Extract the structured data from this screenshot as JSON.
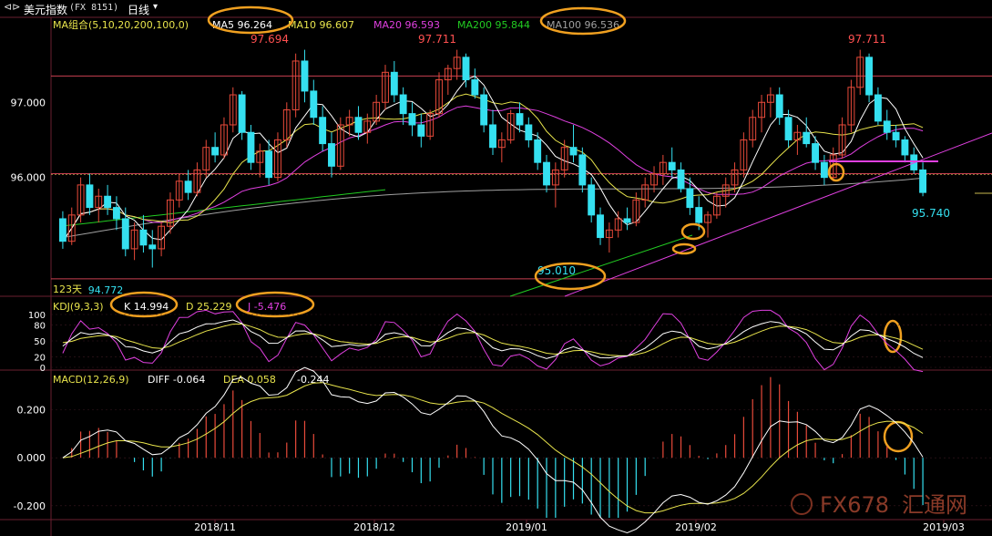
{
  "header": {
    "nav_icon": "back-forward-icon",
    "title": "美元指数",
    "code": "(FX 8151)",
    "period": "日线",
    "period_icon": "chevron-down-icon"
  },
  "main_panel": {
    "indicator_label": "MA组合(5,10,20,200,100,0)",
    "ma_legend": [
      {
        "label": "MA5 96.264",
        "color": "#ffffff"
      },
      {
        "label": "MA10 96.607",
        "color": "#e8e44c"
      },
      {
        "label": "MA20 96.593",
        "color": "#e040e0"
      },
      {
        "label": "MA200 95.844",
        "color": "#22cc22"
      },
      {
        "label": "MA100 96.536",
        "color": "#a0a0a0"
      }
    ],
    "y_ticks": [
      "97.000",
      "96.000"
    ],
    "annotations": {
      "high1": "97.694",
      "high2": "97.711",
      "high3": "97.711",
      "low1": "95.010",
      "low_left": "94.772",
      "last_low": "95.740",
      "days_label": "123天"
    }
  },
  "kdj_panel": {
    "label": "KDJ(9,3,3)",
    "k_label": "K 14.994",
    "d_label": "D 25.229",
    "j_label": "J -5.476",
    "y_ticks": [
      "100",
      "80",
      "50",
      "20",
      "0"
    ]
  },
  "macd_panel": {
    "label": "MACD(12,26,9)",
    "diff_label": "DIFF -0.064",
    "dea_label": "DEA 0.058",
    "macd_value": "-0.244",
    "y_ticks": [
      "0.200",
      "0.000",
      "-0.200"
    ]
  },
  "x_axis": {
    "labels": [
      "2018/11",
      "2018/12",
      "2019/01",
      "2019/02",
      "2019/03"
    ]
  },
  "watermark": {
    "text": "FX678",
    "cn_text": "汇通网"
  },
  "colors": {
    "up": "#e84a3a",
    "down": "#35e0f0",
    "ma5": "#ffffff",
    "ma10": "#e8e44c",
    "ma20": "#e040e0",
    "ma200": "#22cc22",
    "ma100": "#a0a0a0",
    "highlight": "#f0a020",
    "grid_red": "#a03040"
  },
  "chart_data": {
    "type": "candlestick",
    "title": "美元指数 (FX 8151) 日线",
    "ylim": [
      94.6,
      97.95
    ],
    "candles_ohlc": [
      [
        95.45,
        95.55,
        95.05,
        95.15
      ],
      [
        95.15,
        95.6,
        95.1,
        95.5
      ],
      [
        95.5,
        96.0,
        95.4,
        95.9
      ],
      [
        95.9,
        96.05,
        95.5,
        95.6
      ],
      [
        95.6,
        95.85,
        95.4,
        95.75
      ],
      [
        95.75,
        95.9,
        95.5,
        95.6
      ],
      [
        95.6,
        95.75,
        95.3,
        95.45
      ],
      [
        95.45,
        95.6,
        94.95,
        95.05
      ],
      [
        95.05,
        95.4,
        94.9,
        95.3
      ],
      [
        95.3,
        95.5,
        95.0,
        95.1
      ],
      [
        95.1,
        95.3,
        94.8,
        95.05
      ],
      [
        95.05,
        95.4,
        94.95,
        95.35
      ],
      [
        95.35,
        95.8,
        95.25,
        95.7
      ],
      [
        95.7,
        96.05,
        95.6,
        95.95
      ],
      [
        95.95,
        96.1,
        95.7,
        95.8
      ],
      [
        95.8,
        96.2,
        95.75,
        96.1
      ],
      [
        96.1,
        96.5,
        96.0,
        96.4
      ],
      [
        96.4,
        96.6,
        96.2,
        96.3
      ],
      [
        96.3,
        96.8,
        96.25,
        96.7
      ],
      [
        96.7,
        97.2,
        96.6,
        97.1
      ],
      [
        97.1,
        97.15,
        96.5,
        96.6
      ],
      [
        96.6,
        96.7,
        96.1,
        96.2
      ],
      [
        96.2,
        96.45,
        96.0,
        96.35
      ],
      [
        96.35,
        96.5,
        95.9,
        96.0
      ],
      [
        96.0,
        96.6,
        95.95,
        96.5
      ],
      [
        96.5,
        97.0,
        96.4,
        96.9
      ],
      [
        96.9,
        97.65,
        96.8,
        97.55
      ],
      [
        97.55,
        97.7,
        97.0,
        97.15
      ],
      [
        97.15,
        97.3,
        96.7,
        96.8
      ],
      [
        96.8,
        96.95,
        96.35,
        96.45
      ],
      [
        96.45,
        96.6,
        96.0,
        96.15
      ],
      [
        96.15,
        96.8,
        96.1,
        96.7
      ],
      [
        96.7,
        96.9,
        96.55,
        96.8
      ],
      [
        96.8,
        96.95,
        96.5,
        96.6
      ],
      [
        96.6,
        96.85,
        96.45,
        96.75
      ],
      [
        96.75,
        97.1,
        96.7,
        97.0
      ],
      [
        97.0,
        97.5,
        96.9,
        97.4
      ],
      [
        97.4,
        97.55,
        97.0,
        97.1
      ],
      [
        97.1,
        97.2,
        96.7,
        96.85
      ],
      [
        96.85,
        97.0,
        96.55,
        96.7
      ],
      [
        96.7,
        96.85,
        96.4,
        96.55
      ],
      [
        96.55,
        96.9,
        96.5,
        96.85
      ],
      [
        96.85,
        97.4,
        96.8,
        97.3
      ],
      [
        97.3,
        97.5,
        97.1,
        97.45
      ],
      [
        97.45,
        97.7,
        97.3,
        97.6
      ],
      [
        97.6,
        97.65,
        97.2,
        97.3
      ],
      [
        97.3,
        97.45,
        97.05,
        97.1
      ],
      [
        97.1,
        97.2,
        96.6,
        96.7
      ],
      [
        96.7,
        96.9,
        96.3,
        96.4
      ],
      [
        96.4,
        96.6,
        96.2,
        96.5
      ],
      [
        96.5,
        96.9,
        96.45,
        96.85
      ],
      [
        96.85,
        97.0,
        96.6,
        96.7
      ],
      [
        96.7,
        96.8,
        96.4,
        96.5
      ],
      [
        96.5,
        96.6,
        96.1,
        96.2
      ],
      [
        96.2,
        96.3,
        95.8,
        95.9
      ],
      [
        95.9,
        96.2,
        95.6,
        96.1
      ],
      [
        96.1,
        96.5,
        96.0,
        96.4
      ],
      [
        96.4,
        96.7,
        96.2,
        96.3
      ],
      [
        96.3,
        96.4,
        95.8,
        95.9
      ],
      [
        95.9,
        96.0,
        95.4,
        95.5
      ],
      [
        95.5,
        95.6,
        95.1,
        95.2
      ],
      [
        95.2,
        95.4,
        95.0,
        95.3
      ],
      [
        95.3,
        95.55,
        95.2,
        95.45
      ],
      [
        95.45,
        95.6,
        95.3,
        95.4
      ],
      [
        95.4,
        95.8,
        95.35,
        95.7
      ],
      [
        95.7,
        96.0,
        95.6,
        95.9
      ],
      [
        95.9,
        96.15,
        95.8,
        96.05
      ],
      [
        96.05,
        96.3,
        95.9,
        96.2
      ],
      [
        96.2,
        96.4,
        96.0,
        96.1
      ],
      [
        96.1,
        96.2,
        95.8,
        95.85
      ],
      [
        95.85,
        96.0,
        95.5,
        95.6
      ],
      [
        95.6,
        95.75,
        95.3,
        95.4
      ],
      [
        95.4,
        95.55,
        95.2,
        95.5
      ],
      [
        95.5,
        95.8,
        95.45,
        95.75
      ],
      [
        95.75,
        96.0,
        95.6,
        95.9
      ],
      [
        95.9,
        96.2,
        95.8,
        96.1
      ],
      [
        96.1,
        96.6,
        96.0,
        96.5
      ],
      [
        96.5,
        96.9,
        96.4,
        96.8
      ],
      [
        96.8,
        97.1,
        96.6,
        97.0
      ],
      [
        97.0,
        97.2,
        96.8,
        97.1
      ],
      [
        97.1,
        97.2,
        96.7,
        96.8
      ],
      [
        96.8,
        96.9,
        96.4,
        96.5
      ],
      [
        96.5,
        96.7,
        96.3,
        96.6
      ],
      [
        96.6,
        96.8,
        96.4,
        96.45
      ],
      [
        96.45,
        96.55,
        96.1,
        96.2
      ],
      [
        96.2,
        96.3,
        95.9,
        96.0
      ],
      [
        96.0,
        96.4,
        95.95,
        96.3
      ],
      [
        96.3,
        96.8,
        96.25,
        96.7
      ],
      [
        96.7,
        97.3,
        96.6,
        97.2
      ],
      [
        97.2,
        97.7,
        97.1,
        97.6
      ],
      [
        97.6,
        97.65,
        97.0,
        97.1
      ],
      [
        97.1,
        97.2,
        96.7,
        96.75
      ],
      [
        96.75,
        96.9,
        96.5,
        96.6
      ],
      [
        96.6,
        96.7,
        96.4,
        96.5
      ],
      [
        96.5,
        96.55,
        96.2,
        96.3
      ],
      [
        96.3,
        96.4,
        96.05,
        96.1
      ],
      [
        96.1,
        96.2,
        95.75,
        95.8
      ]
    ],
    "ma_last": {
      "MA5": 96.264,
      "MA10": 96.607,
      "MA20": 96.593,
      "MA200": 95.844,
      "MA100": 96.536
    },
    "kdj": {
      "K": 14.994,
      "D": 25.229,
      "J": -5.476,
      "ylim": [
        0,
        100
      ]
    },
    "macd": {
      "DIFF": -0.064,
      "DEA": 0.058,
      "MACD": -0.244,
      "ylim": [
        -0.25,
        0.35
      ]
    },
    "x_tick_labels": [
      "2018/11",
      "2018/12",
      "2019/01",
      "2019/02",
      "2019/03"
    ]
  }
}
